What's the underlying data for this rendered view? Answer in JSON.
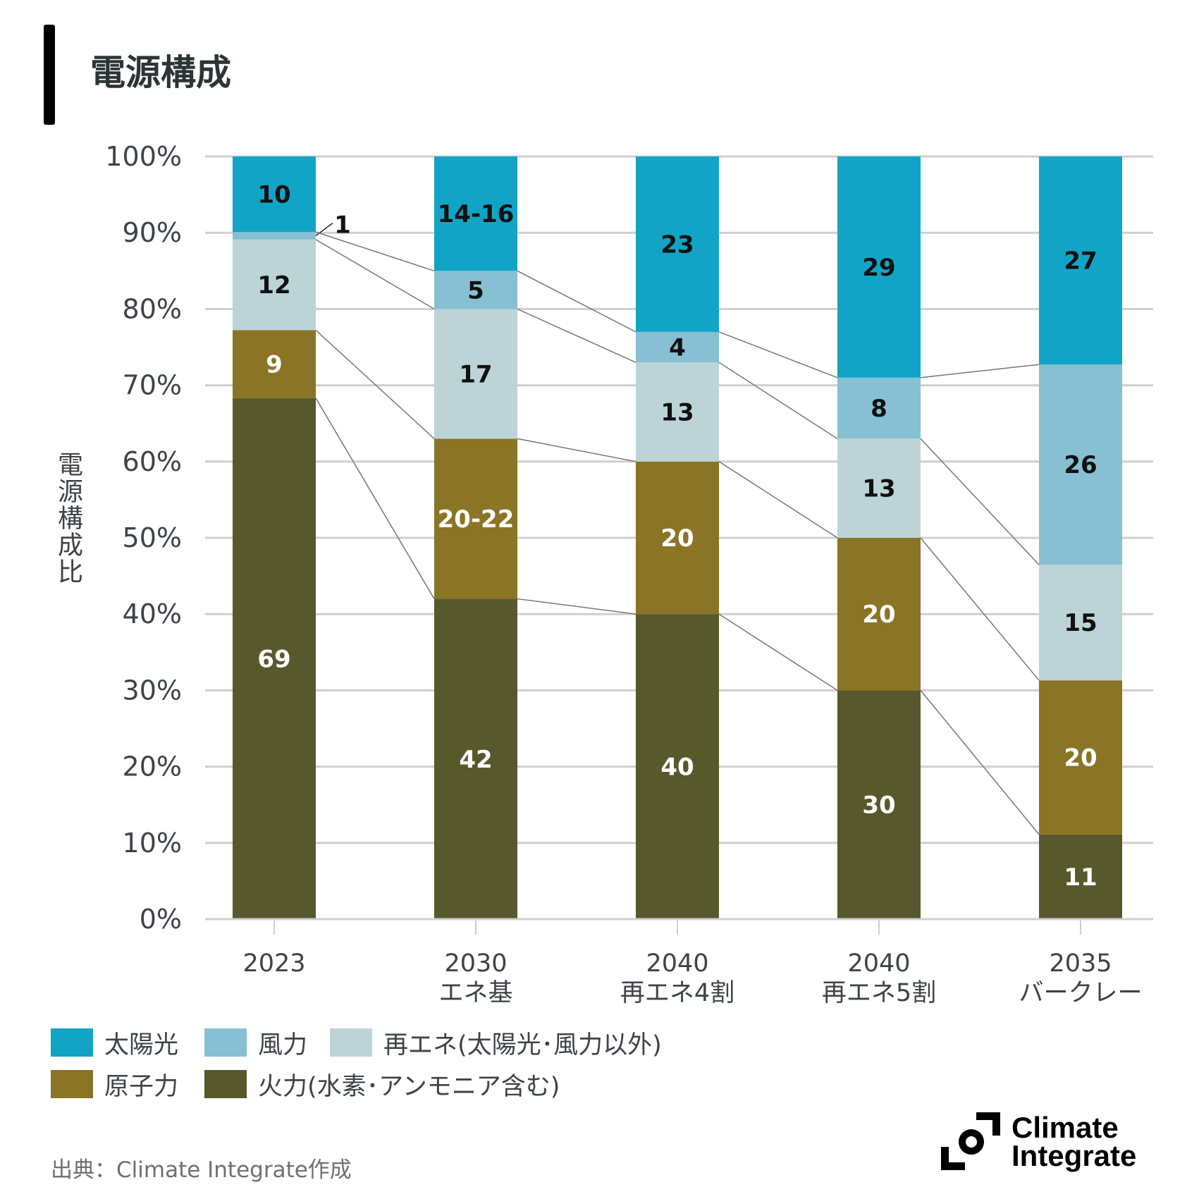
{
  "title": "電源構成",
  "source": "出典：Climate Integrate作成",
  "logo_text": [
    "Climate",
    "Integrate"
  ],
  "chart_data": {
    "type": "bar",
    "stacked": true,
    "ylabel": "電源構成比",
    "ylim": [
      0,
      100
    ],
    "yticks": [
      "0%",
      "10%",
      "20%",
      "30%",
      "40%",
      "50%",
      "60%",
      "70%",
      "80%",
      "90%",
      "100%"
    ],
    "grid": true,
    "legend_placement": "bottom",
    "categories": [
      {
        "line1": "2023",
        "line2": ""
      },
      {
        "line1": "2030",
        "line2": "エネ基"
      },
      {
        "line1": "2040",
        "line2": "再エネ4割"
      },
      {
        "line1": "2040",
        "line2": "再エネ5割"
      },
      {
        "line1": "2035",
        "line2": "バークレー"
      }
    ],
    "series": [
      {
        "name": "火力(水素･アンモニア含む)",
        "color": "#57592c",
        "label_color": "#ffffff",
        "values": [
          69,
          42,
          40,
          30,
          11
        ],
        "labels": [
          "69",
          "42",
          "40",
          "30",
          "11"
        ]
      },
      {
        "name": "原子力",
        "color": "#8a7425",
        "label_color": "#ffffff",
        "values": [
          9,
          21,
          20,
          20,
          20
        ],
        "labels": [
          "9",
          "20-22",
          "20",
          "20",
          "20"
        ]
      },
      {
        "name": "再エネ(太陽光･風力以外)",
        "color": "#bcd4d6",
        "label_color": "#111111",
        "values": [
          12,
          17,
          13,
          13,
          15
        ],
        "labels": [
          "12",
          "17",
          "13",
          "13",
          "15"
        ]
      },
      {
        "name": "風力",
        "color": "#86c0d2",
        "label_color": "#111111",
        "values": [
          1,
          5,
          4,
          8,
          26
        ],
        "labels": [
          "1",
          "5",
          "4",
          "8",
          "26"
        ]
      },
      {
        "name": "太陽光",
        "color": "#12a4c6",
        "label_color": "#111111",
        "values": [
          10,
          15,
          23,
          29,
          27
        ],
        "labels": [
          "10",
          "14-16",
          "23",
          "29",
          "27"
        ]
      }
    ],
    "legend_order": [
      4,
      3,
      2,
      1,
      0
    ]
  }
}
